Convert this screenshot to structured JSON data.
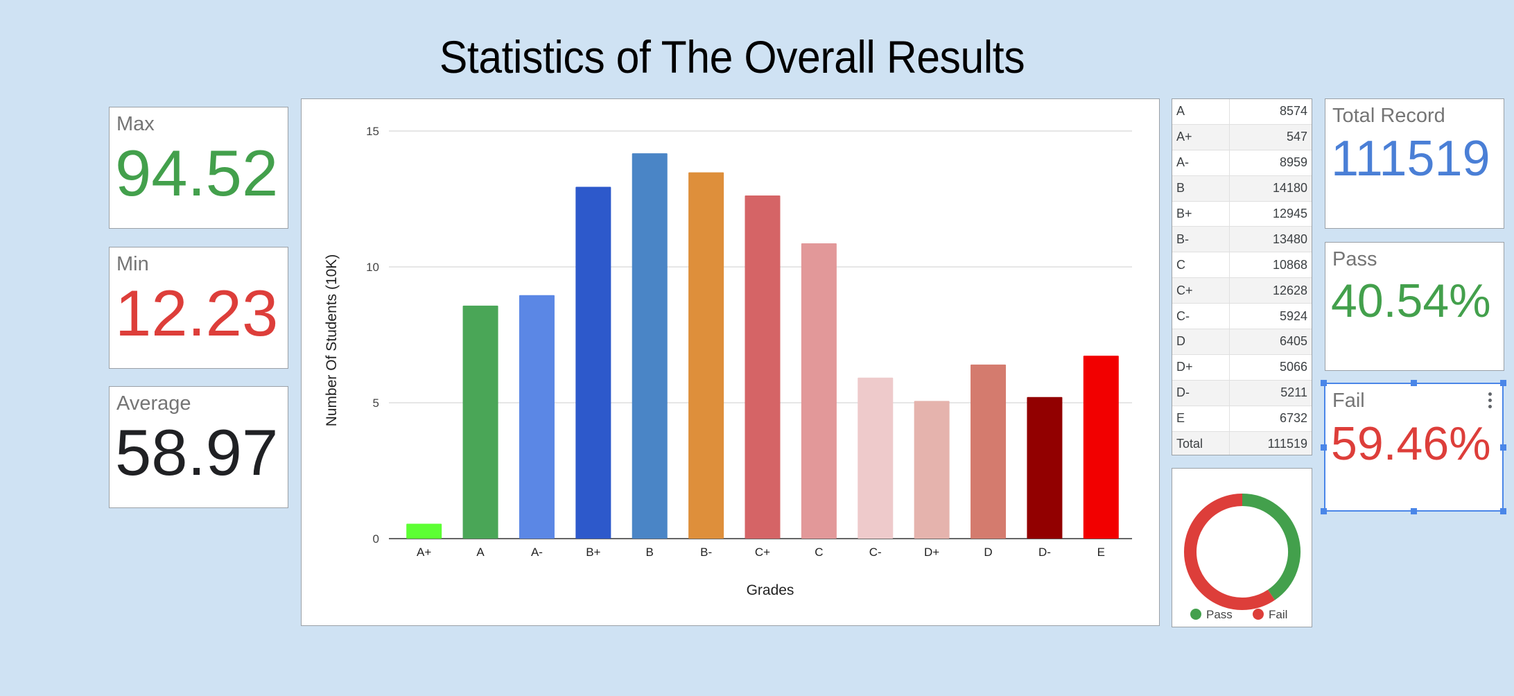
{
  "page": {
    "title": "Statistics of The Overall Results"
  },
  "scorecards": {
    "max": {
      "label": "Max",
      "value": "94.52",
      "color": "#43a04c"
    },
    "min": {
      "label": "Min",
      "value": "12.23",
      "color": "#dd3e3a"
    },
    "average": {
      "label": "Average",
      "value": "58.97",
      "color": "#202124"
    },
    "total": {
      "label": "Total Record",
      "value": "111519",
      "color": "#4a7fd6"
    },
    "pass": {
      "label": "Pass",
      "value": "40.54%",
      "color": "#43a04c"
    },
    "fail": {
      "label": "Fail",
      "value": "59.46%",
      "color": "#dd3e3a"
    }
  },
  "grade_table": {
    "rows": [
      {
        "grade": "A",
        "count": "8574"
      },
      {
        "grade": "A+",
        "count": "547"
      },
      {
        "grade": "A-",
        "count": "8959"
      },
      {
        "grade": "B",
        "count": "14180"
      },
      {
        "grade": "B+",
        "count": "12945"
      },
      {
        "grade": "B-",
        "count": "13480"
      },
      {
        "grade": "C",
        "count": "10868"
      },
      {
        "grade": "C+",
        "count": "12628"
      },
      {
        "grade": "C-",
        "count": "5924"
      },
      {
        "grade": "D",
        "count": "6405"
      },
      {
        "grade": "D+",
        "count": "5066"
      },
      {
        "grade": "D-",
        "count": "5211"
      },
      {
        "grade": "E",
        "count": "6732"
      },
      {
        "grade": "Total",
        "count": "111519"
      }
    ]
  },
  "chart_data": [
    {
      "type": "bar",
      "title": "",
      "xlabel": "Grades",
      "ylabel": "Number Of Students (10K)",
      "ylim": [
        0,
        15
      ],
      "yticks": [
        0,
        5,
        10,
        15
      ],
      "grid": true,
      "legend": "none",
      "categories": [
        "A+",
        "A",
        "A-",
        "B+",
        "B",
        "B-",
        "C+",
        "C",
        "C-",
        "D+",
        "D",
        "D-",
        "E"
      ],
      "values": [
        0.547,
        8.574,
        8.959,
        12.945,
        14.18,
        13.48,
        12.628,
        10.868,
        5.924,
        5.066,
        6.405,
        5.211,
        6.732
      ],
      "colors": [
        "#5cff33",
        "#4aa657",
        "#5b87e5",
        "#2d59cb",
        "#4a85c6",
        "#de8f3b",
        "#d56466",
        "#e29899",
        "#eecacb",
        "#e5b3ad",
        "#d47b6e",
        "#920000",
        "#f20000"
      ]
    },
    {
      "type": "pie",
      "hole": true,
      "legend": "bottom",
      "labels": [
        "Pass",
        "Fail"
      ],
      "values": [
        40.54,
        59.46
      ],
      "colors": [
        "#43a04c",
        "#dd3e3a"
      ]
    }
  ]
}
